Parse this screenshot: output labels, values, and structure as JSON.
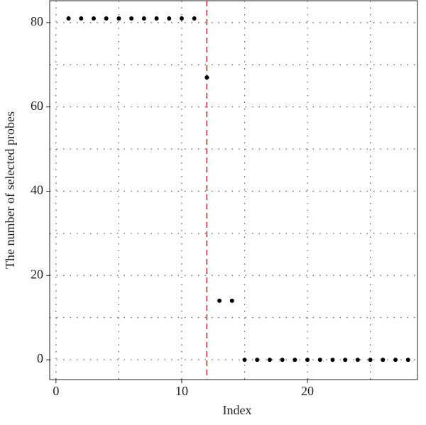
{
  "chart_data": {
    "type": "scatter",
    "x_label": "Index",
    "y_label": "The number of selected probes",
    "x": [
      1,
      2,
      3,
      4,
      5,
      6,
      7,
      8,
      9,
      10,
      11,
      12,
      13,
      14,
      15,
      16,
      17,
      18,
      19,
      20,
      21,
      22,
      23,
      24,
      25,
      26,
      27,
      28
    ],
    "values": [
      81,
      81,
      81,
      81,
      81,
      81,
      81,
      81,
      81,
      81,
      81,
      67,
      14,
      14,
      0,
      0,
      0,
      0,
      0,
      0,
      0,
      0,
      0,
      0,
      0,
      0,
      0,
      0
    ],
    "color": "#000000",
    "xlim": [
      -0.5,
      28.75
    ],
    "ylim": [
      -4.7,
      85.2
    ],
    "xticks": [
      0,
      10,
      20
    ],
    "yticks": [
      0,
      20,
      40,
      60,
      80
    ],
    "xgrid": [
      0,
      5,
      10,
      15,
      20,
      25
    ],
    "ygrid": [
      0,
      10,
      20,
      30,
      40,
      50,
      60,
      70,
      80
    ],
    "grid": true,
    "vline": {
      "x": 12,
      "color": "#a52a2a"
    }
  }
}
